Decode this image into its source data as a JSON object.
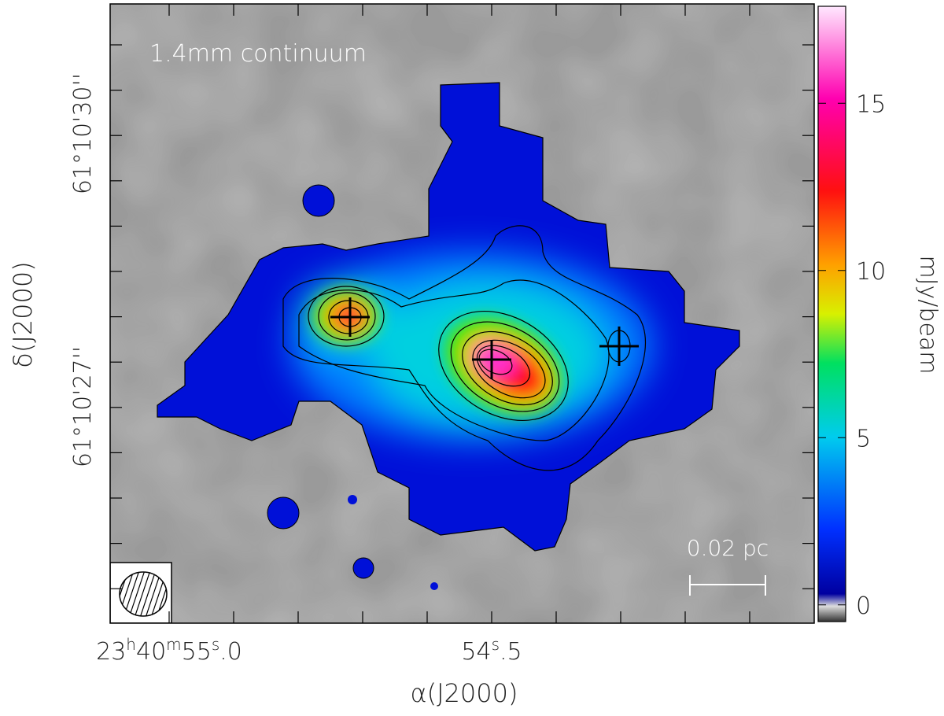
{
  "title": "1.4mm continuum",
  "x_axis": {
    "label": "α(J2000)",
    "ticks": [
      {
        "parts": [
          {
            "text": "23"
          },
          {
            "text": "h",
            "sup": true
          },
          {
            "text": "40"
          },
          {
            "text": "m",
            "sup": true
          },
          {
            "text": "55"
          },
          {
            "text": "s",
            "sup": true
          },
          {
            "text": ".0"
          }
        ]
      },
      {
        "parts": [
          {
            "text": "54"
          },
          {
            "text": "s",
            "sup": true
          },
          {
            "text": ".5"
          }
        ]
      }
    ]
  },
  "y_axis": {
    "label": "δ(J2000)",
    "ticks": [
      "61°10'30''",
      "61°10'27''"
    ]
  },
  "colorbar": {
    "label": "mJy/beam",
    "clim": [
      -0.5,
      17.9
    ],
    "ticks": [
      0,
      5,
      10,
      15
    ]
  },
  "scale_bar": "0.02 pc"
}
